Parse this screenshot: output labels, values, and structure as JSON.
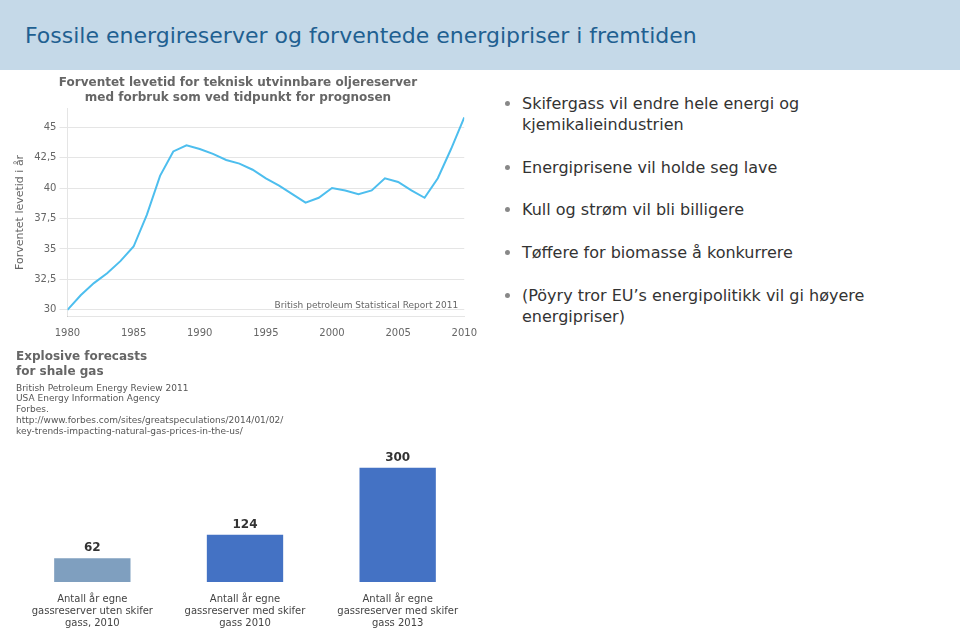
{
  "title": "Fossile energireserver og forventede energipriser i fremtiden",
  "annotations": [
    "Skifergass vil endre hele energi og\nkjemikalieindustrien",
    "Energiprisene vil holde seg lave",
    "Kull og strøm vil bli billigere",
    "Tøffere for biomasse å konkurrere",
    "(Pöyry tror EU’s energipolitikk vil gi høyere\nenergipriser)"
  ],
  "chart_data": [
    {
      "type": "line",
      "title": "Forventet levetid for teknisk utvinnbare oljereserver\nmed forbruk som ved tidpunkt for prognosen",
      "y_label": "Forventet levetid i år",
      "annotations": [
        "British petroleum Statistical Report 2011"
      ],
      "x": [
        1980,
        1981,
        1982,
        1983,
        1984,
        1985,
        1986,
        1987,
        1988,
        1989,
        1990,
        1991,
        1992,
        1993,
        1994,
        1995,
        1996,
        1997,
        1998,
        1999,
        2000,
        2001,
        2002,
        2003,
        2004,
        2005,
        2006,
        2007,
        2008,
        2009,
        2010
      ],
      "values": [
        30.0,
        31.2,
        32.2,
        33.0,
        34.0,
        35.2,
        37.8,
        41.0,
        43.0,
        43.5,
        43.2,
        42.8,
        42.3,
        42.0,
        41.5,
        40.8,
        40.2,
        39.5,
        38.8,
        39.2,
        40.0,
        39.8,
        39.5,
        39.8,
        40.8,
        40.5,
        39.8,
        39.2,
        40.8,
        43.2,
        45.8
      ],
      "color": "#4DBEEE",
      "xlim": [
        1980,
        2010
      ],
      "xticks": [
        1980,
        1985,
        1990,
        1995,
        2000,
        2005,
        2010
      ],
      "ylim": [
        29.5,
        46.5
      ],
      "yticks": [
        30,
        {
          "value": 32.5,
          "label": "32,5"
        },
        35,
        {
          "value": 37.5,
          "label": "37,5"
        },
        40,
        {
          "value": 42.5,
          "label": "42,5"
        },
        45
      ],
      "grid": true
    },
    {
      "type": "bar",
      "title": "Explosive forecasts\nfor shale gas",
      "subtitle": "British Petroleum Energy Review 2011\nUSA Energy Information Agency\nForbes.\nhttp://www.forbes.com/sites/greatspeculations/2014/01/02/\nkey-trends-impacting-natural-gas-prices-in-the-us/",
      "categories": [
        "Antall år egne\ngassreserver uten skifer\ngass, 2010",
        "Antall år egne\ngassreserver med skifer\ngass 2010",
        "Antall år egne\ngassreserver med skifer\ngass 2013"
      ],
      "values": [
        62,
        124,
        300
      ],
      "colors": [
        "#7F9FBF",
        "#4472C4",
        "#4472C4"
      ],
      "ylim": [
        0,
        360
      ],
      "data_labels": true,
      "tick_labels": "x",
      "grid": false
    }
  ]
}
